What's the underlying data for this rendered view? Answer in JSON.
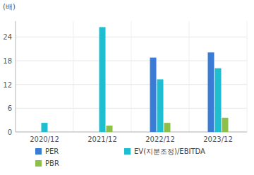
{
  "chart_data": {
    "type": "bar",
    "ylabel": "(배)",
    "categories": [
      "2020/12",
      "2021/12",
      "2022/12",
      "2023/12"
    ],
    "series": [
      {
        "name": "PER",
        "color": "#3a7bd5",
        "values": [
          null,
          null,
          18.8,
          20.1
        ]
      },
      {
        "name": "EV(지분조정)/EBITDA",
        "color": "#1fbdd0",
        "values": [
          2.3,
          26.5,
          13.3,
          16.1
        ]
      },
      {
        "name": "PBR",
        "color": "#8cc04b",
        "values": [
          null,
          1.6,
          2.3,
          3.6
        ]
      }
    ],
    "ylim": [
      0,
      28
    ],
    "yticks": [
      0,
      6,
      12,
      18,
      24
    ],
    "grid": true,
    "legend": "bottom"
  }
}
